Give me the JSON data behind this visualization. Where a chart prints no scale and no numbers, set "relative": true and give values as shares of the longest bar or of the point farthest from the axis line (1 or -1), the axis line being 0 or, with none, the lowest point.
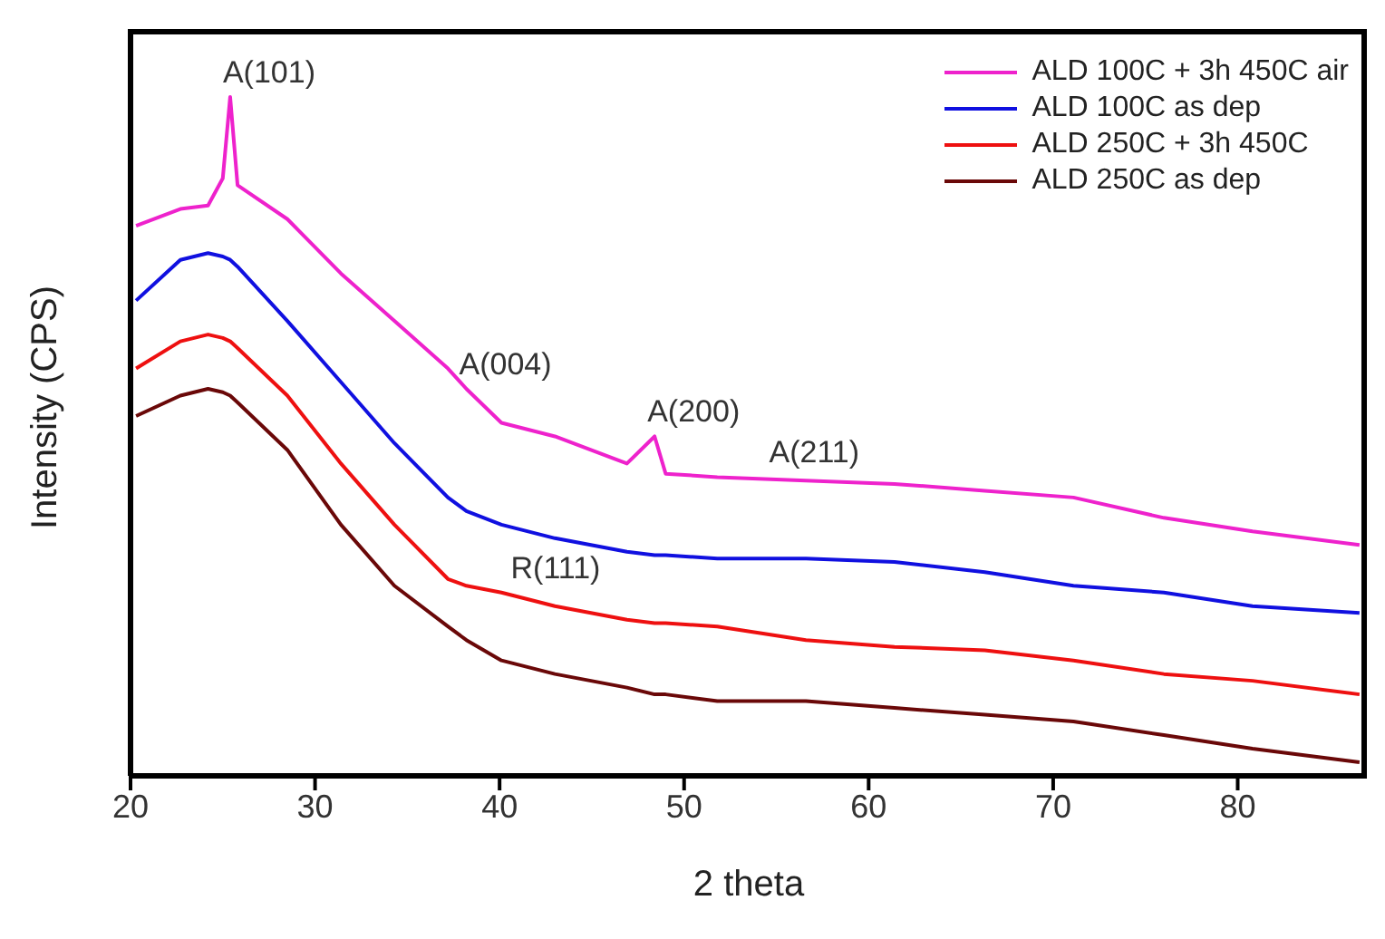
{
  "chart_data": {
    "type": "line",
    "xlabel": "2 theta",
    "ylabel": "Intensity (CPS)",
    "relative": true,
    "xlim": [
      20,
      87
    ],
    "xticks": [
      20,
      30,
      40,
      50,
      60,
      70,
      80
    ],
    "legend": "top right",
    "grid": false,
    "marker": "none",
    "line_style": "solid",
    "x": [
      20.3,
      22.7,
      24.2,
      25.0,
      25.4,
      25.8,
      28.5,
      31.4,
      34.3,
      37.2,
      38.2,
      40.1,
      43.0,
      46.9,
      48.4,
      49.0,
      51.8,
      56.6,
      61.4,
      66.3,
      71.1,
      76.0,
      80.8,
      86.6
    ],
    "series": [
      {
        "name": "ALD 100C + 3h 450C air",
        "color": "#ee22cc",
        "values": [
          0.81,
          0.835,
          0.84,
          0.88,
          1.0,
          0.87,
          0.82,
          0.74,
          0.67,
          0.6,
          0.57,
          0.52,
          0.5,
          0.46,
          0.5,
          0.445,
          0.44,
          0.435,
          0.43,
          0.42,
          0.41,
          0.38,
          0.36,
          0.34
        ]
      },
      {
        "name": "ALD 100C as dep",
        "color": "#1010e0",
        "values": [
          0.7,
          0.76,
          0.77,
          0.765,
          0.76,
          0.75,
          0.67,
          0.58,
          0.49,
          0.41,
          0.39,
          0.37,
          0.35,
          0.33,
          0.325,
          0.325,
          0.32,
          0.32,
          0.315,
          0.3,
          0.28,
          0.27,
          0.25,
          0.24
        ]
      },
      {
        "name": "ALD 250C + 3h 450C",
        "color": "#ee1010",
        "values": [
          0.6,
          0.64,
          0.65,
          0.645,
          0.64,
          0.63,
          0.56,
          0.46,
          0.37,
          0.29,
          0.28,
          0.27,
          0.25,
          0.23,
          0.225,
          0.225,
          0.22,
          0.2,
          0.19,
          0.185,
          0.17,
          0.15,
          0.14,
          0.12
        ]
      },
      {
        "name": "ALD 250C as dep",
        "color": "#6a0808",
        "values": [
          0.53,
          0.56,
          0.57,
          0.565,
          0.56,
          0.55,
          0.48,
          0.37,
          0.28,
          0.22,
          0.2,
          0.17,
          0.15,
          0.13,
          0.12,
          0.12,
          0.11,
          0.11,
          0.1,
          0.09,
          0.08,
          0.06,
          0.04,
          0.02
        ]
      }
    ],
    "annotations": [
      {
        "text": "A(101)",
        "x": 25.4,
        "y": 1.0
      },
      {
        "text": "A(004)",
        "x": 38.2,
        "y": 0.57
      },
      {
        "text": "A(200)",
        "x": 48.4,
        "y": 0.5
      },
      {
        "text": "A(211)",
        "x": 55.0,
        "y": 0.44
      },
      {
        "text": "R(111)",
        "x": 41.0,
        "y": 0.27
      }
    ]
  }
}
